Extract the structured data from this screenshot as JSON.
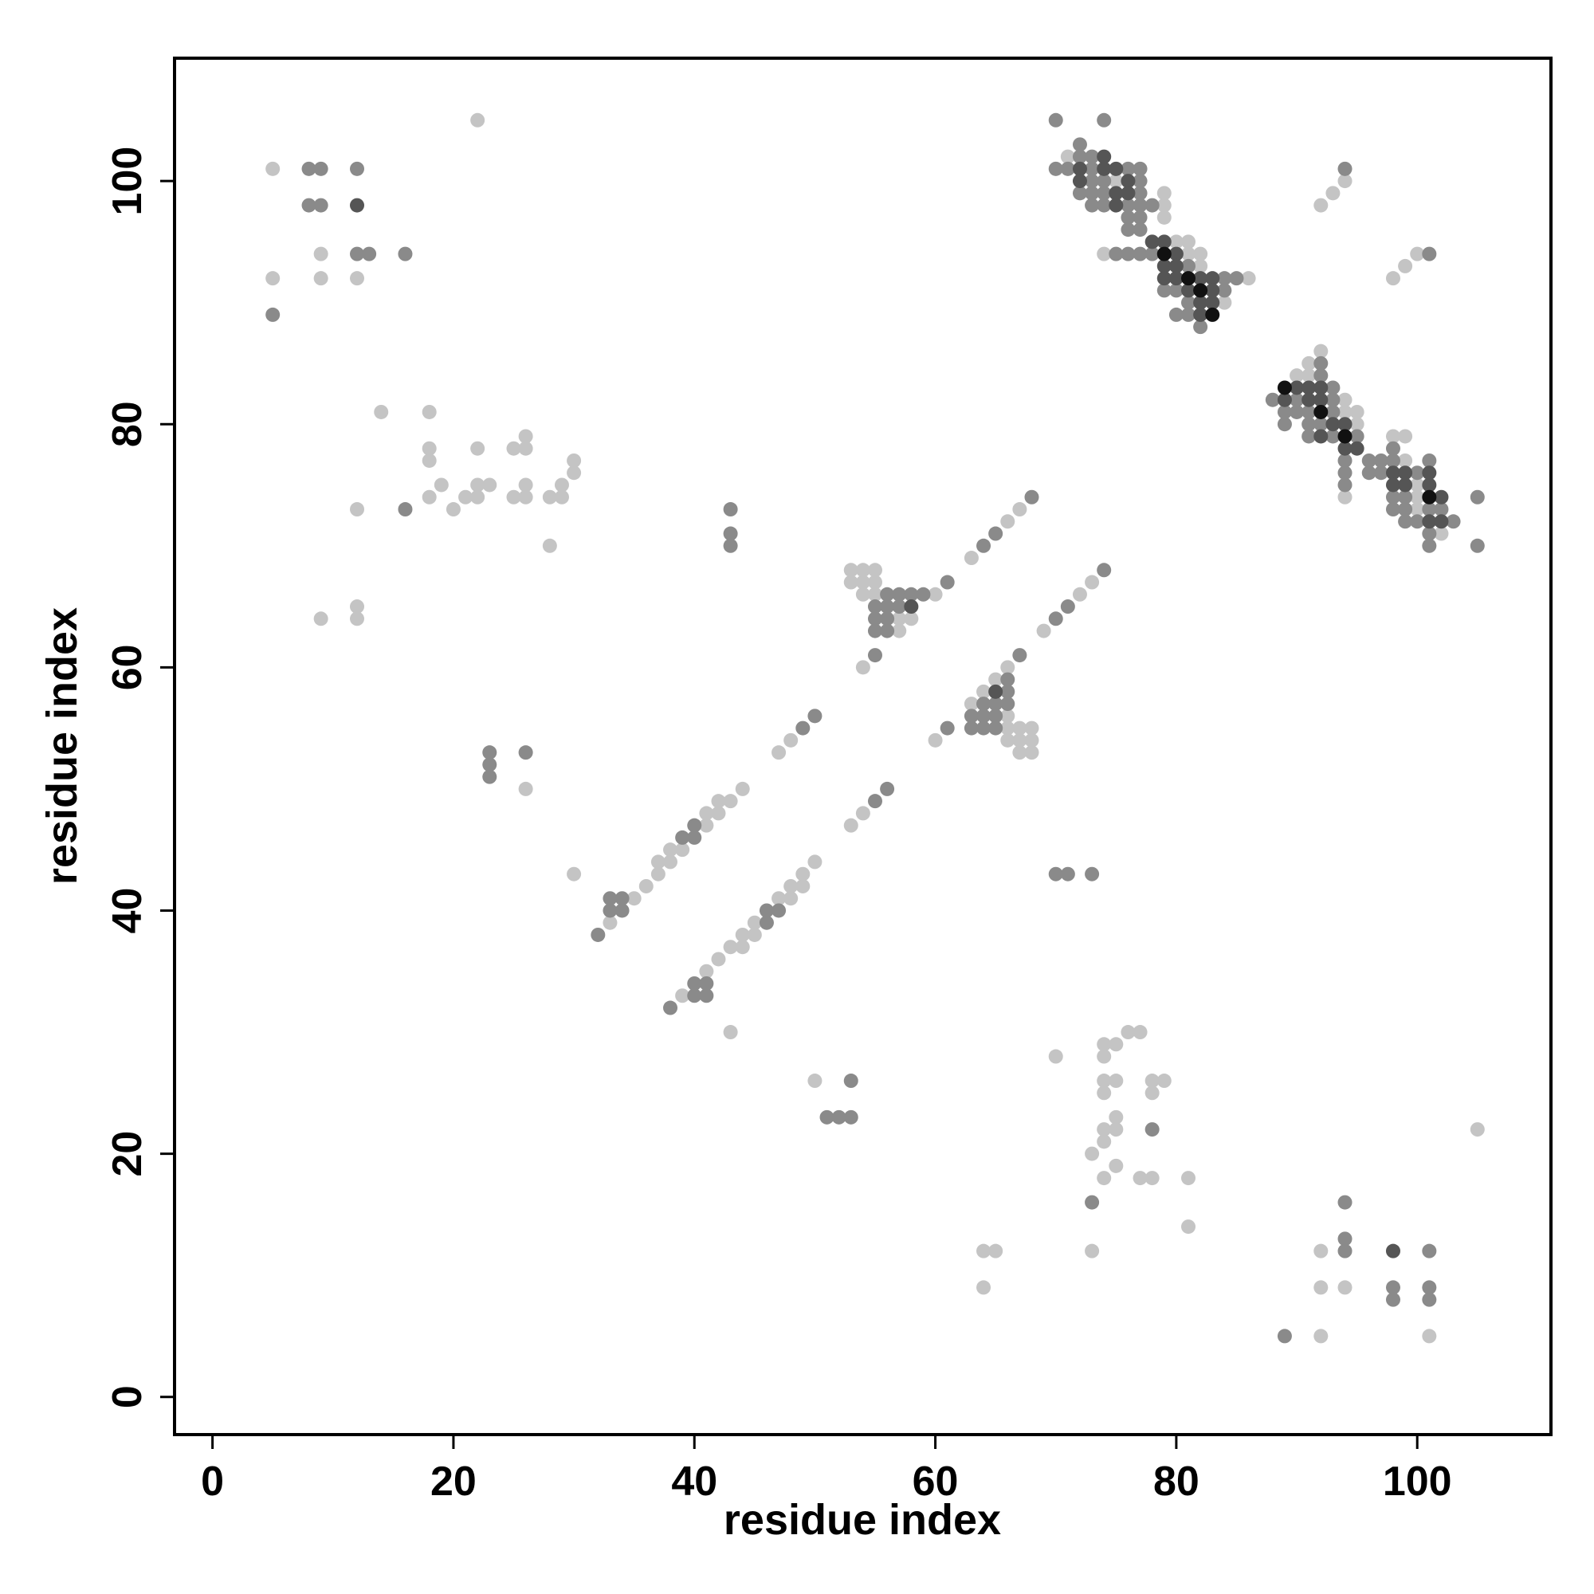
{
  "chart_data": {
    "type": "scatter",
    "xlabel": "residue index",
    "ylabel": "residue index",
    "xlim": [
      -3.15,
      111.1
    ],
    "ylim": [
      -3.1,
      110.1
    ],
    "xticks": [
      0,
      20,
      40,
      60,
      80,
      100
    ],
    "yticks": [
      0,
      20,
      40,
      60,
      80,
      100
    ],
    "series": [
      {
        "color": "#c4c4c4",
        "x": [
          5,
          9,
          5,
          9,
          12,
          22,
          14,
          18,
          18,
          22,
          25,
          26,
          26,
          18,
          30,
          19,
          22,
          23,
          26,
          29,
          18,
          21,
          22,
          25,
          26,
          28,
          29,
          20,
          12,
          30,
          28,
          9,
          12,
          12,
          26,
          30,
          33,
          35,
          36,
          37,
          37,
          38,
          38,
          39,
          41,
          41,
          42,
          42,
          43,
          44,
          47,
          48,
          54,
          53,
          54,
          55,
          53,
          54,
          55,
          54,
          55,
          60,
          57,
          58,
          57,
          63,
          66,
          67,
          39,
          41,
          42,
          43,
          44,
          44,
          45,
          45,
          47,
          48,
          48,
          49,
          49,
          50,
          53,
          54,
          60,
          65,
          66,
          64,
          63,
          66,
          66,
          67,
          68,
          66,
          67,
          68,
          67,
          68,
          69,
          72,
          73,
          43,
          50,
          64,
          65,
          64,
          70,
          74,
          75,
          74,
          76,
          77,
          74,
          75,
          74,
          78,
          79,
          78,
          75,
          74,
          75,
          73,
          74,
          75,
          74,
          77,
          78,
          81,
          81,
          73,
          105,
          92,
          92,
          94,
          92,
          101,
          71,
          75,
          79,
          79,
          79,
          80,
          81,
          74,
          81,
          82,
          82,
          86,
          84,
          94,
          93,
          92,
          100,
          99,
          98,
          92,
          91,
          90,
          91,
          94,
          94,
          95,
          95,
          98,
          99,
          99,
          100,
          94,
          100,
          100,
          102
        ],
        "values": [
          101,
          94,
          92,
          92,
          92,
          105,
          81,
          81,
          78,
          78,
          78,
          78,
          79,
          77,
          77,
          75,
          75,
          75,
          75,
          75,
          74,
          74,
          74,
          74,
          74,
          74,
          74,
          73,
          73,
          76,
          70,
          64,
          65,
          64,
          50,
          43,
          39,
          41,
          42,
          43,
          44,
          44,
          45,
          45,
          47,
          48,
          48,
          49,
          49,
          50,
          53,
          54,
          60,
          68,
          68,
          68,
          67,
          67,
          67,
          66,
          66,
          66,
          64,
          64,
          63,
          69,
          72,
          73,
          33,
          35,
          36,
          37,
          37,
          38,
          38,
          39,
          41,
          41,
          42,
          42,
          43,
          44,
          47,
          48,
          54,
          59,
          60,
          58,
          57,
          56,
          55,
          55,
          55,
          54,
          54,
          54,
          53,
          53,
          63,
          66,
          67,
          30,
          26,
          12,
          12,
          9,
          28,
          29,
          29,
          28,
          30,
          30,
          26,
          26,
          25,
          26,
          26,
          25,
          23,
          22,
          22,
          20,
          21,
          19,
          18,
          18,
          18,
          18,
          14,
          12,
          22,
          12,
          9,
          9,
          5,
          5,
          102,
          100,
          99,
          98,
          97,
          95,
          95,
          94,
          94,
          94,
          93,
          92,
          90,
          100,
          99,
          98,
          94,
          93,
          92,
          86,
          85,
          84,
          84,
          82,
          81,
          81,
          80,
          79,
          79,
          77,
          75,
          74,
          74,
          73,
          71
        ]
      },
      {
        "color": "#8a8a8a",
        "x": [
          8,
          9,
          12,
          8,
          9,
          12,
          13,
          16,
          5,
          16,
          43,
          43,
          43,
          23,
          23,
          23,
          26,
          32,
          33,
          33,
          34,
          34,
          39,
          40,
          40,
          49,
          50,
          55,
          56,
          57,
          58,
          59,
          55,
          56,
          57,
          55,
          56,
          55,
          56,
          61,
          64,
          65,
          68,
          38,
          40,
          40,
          41,
          41,
          46,
          46,
          47,
          55,
          56,
          61,
          66,
          66,
          64,
          65,
          66,
          63,
          64,
          65,
          63,
          64,
          65,
          67,
          70,
          71,
          74,
          70,
          71,
          73,
          53,
          51,
          52,
          53,
          78,
          73,
          94,
          94,
          94,
          101,
          98,
          101,
          98,
          101,
          89,
          70,
          74,
          72,
          72,
          73,
          70,
          71,
          73,
          76,
          77,
          73,
          74,
          77,
          72,
          73,
          74,
          77,
          73,
          74,
          76,
          77,
          78,
          76,
          77,
          76,
          77,
          75,
          76,
          77,
          78,
          81,
          84,
          85,
          79,
          80,
          84,
          81,
          80,
          81,
          82,
          94,
          101,
          92,
          92,
          93,
          88,
          90,
          93,
          89,
          90,
          91,
          93,
          89,
          91,
          92,
          91,
          93,
          95,
          98,
          94,
          96,
          97,
          98,
          101,
          94,
          96,
          97,
          100,
          94,
          98,
          99,
          105,
          98,
          99,
          101,
          102,
          99,
          100,
          103,
          101,
          101,
          105
        ],
        "values": [
          101,
          101,
          101,
          98,
          98,
          94,
          94,
          94,
          89,
          73,
          73,
          71,
          70,
          53,
          52,
          51,
          53,
          38,
          40,
          41,
          40,
          41,
          46,
          46,
          47,
          55,
          56,
          61,
          66,
          66,
          66,
          66,
          65,
          65,
          65,
          64,
          64,
          63,
          63,
          67,
          70,
          71,
          74,
          32,
          33,
          34,
          33,
          34,
          39,
          40,
          40,
          49,
          50,
          55,
          59,
          58,
          57,
          57,
          57,
          56,
          56,
          56,
          55,
          55,
          55,
          61,
          64,
          65,
          68,
          43,
          43,
          43,
          26,
          23,
          23,
          23,
          22,
          16,
          16,
          13,
          12,
          12,
          9,
          9,
          8,
          8,
          5,
          105,
          105,
          103,
          102,
          102,
          101,
          101,
          101,
          101,
          101,
          100,
          100,
          100,
          99,
          99,
          99,
          99,
          98,
          98,
          98,
          98,
          98,
          97,
          97,
          96,
          96,
          94,
          94,
          94,
          94,
          93,
          92,
          92,
          91,
          91,
          91,
          90,
          89,
          89,
          88,
          101,
          94,
          85,
          84,
          83,
          82,
          82,
          82,
          81,
          81,
          81,
          81,
          80,
          80,
          80,
          79,
          79,
          79,
          78,
          77,
          77,
          77,
          77,
          77,
          76,
          76,
          76,
          76,
          75,
          74,
          74,
          74,
          73,
          73,
          73,
          73,
          72,
          72,
          72,
          71,
          70,
          70
        ]
      },
      {
        "color": "#555555",
        "x": [
          12,
          58,
          65,
          98,
          74,
          72,
          74,
          75,
          72,
          76,
          75,
          76,
          75,
          78,
          79,
          80,
          79,
          80,
          79,
          80,
          82,
          83,
          81,
          83,
          82,
          83,
          82,
          90,
          91,
          92,
          89,
          91,
          92,
          93,
          94,
          92,
          94,
          95,
          98,
          99,
          101,
          98,
          99,
          101,
          102,
          101,
          102
        ],
        "values": [
          98,
          65,
          58,
          12,
          102,
          101,
          101,
          101,
          100,
          100,
          99,
          99,
          98,
          95,
          95,
          94,
          93,
          93,
          92,
          92,
          92,
          92,
          91,
          91,
          90,
          90,
          89,
          83,
          83,
          83,
          82,
          82,
          82,
          80,
          80,
          79,
          78,
          78,
          76,
          76,
          76,
          75,
          75,
          75,
          74,
          72,
          72
        ]
      },
      {
        "color": "#111111",
        "x": [
          79,
          81,
          82,
          83,
          89,
          92,
          94,
          101
        ],
        "values": [
          94,
          92,
          91,
          89,
          83,
          81,
          79,
          74
        ]
      }
    ]
  }
}
